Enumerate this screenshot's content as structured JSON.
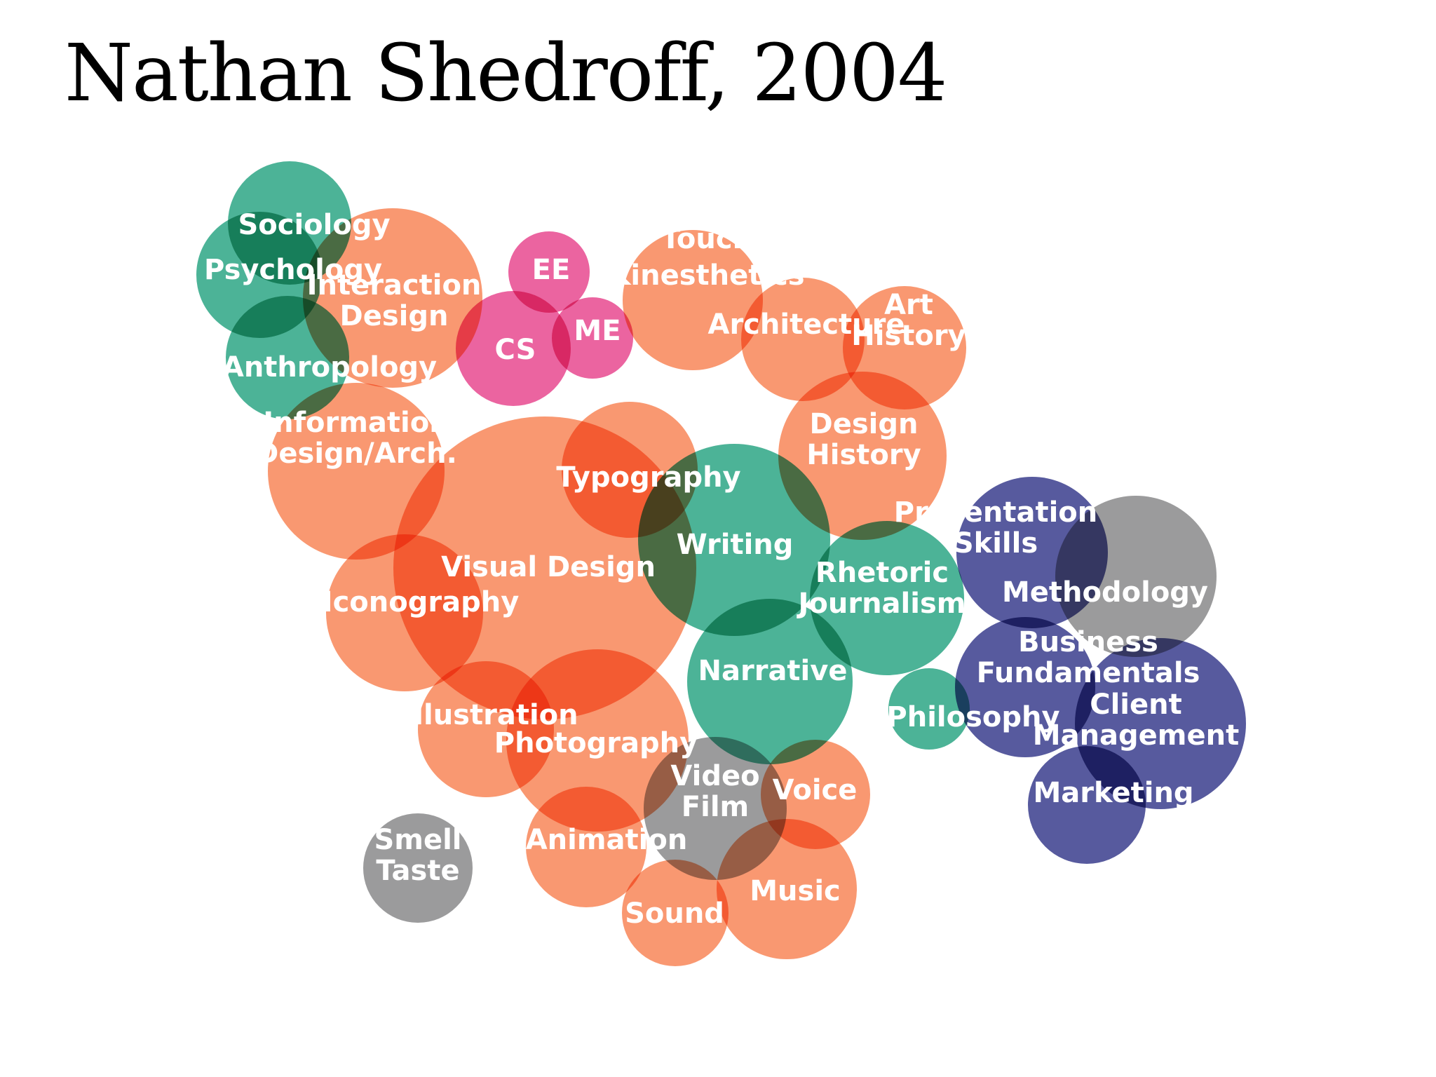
{
  "title": "Nathan Shedroff, 2004",
  "colors": {
    "orange": "#f8875a",
    "green": "#2fa786",
    "pink": "#e84a90",
    "navy": "#3b3f8e",
    "gray": "#8a8a8c"
  },
  "bubbles": [
    {
      "name": "sociology",
      "lines": [
        "Sociology"
      ],
      "group": "green"
    },
    {
      "name": "psychology",
      "lines": [
        "Psychology"
      ],
      "group": "green"
    },
    {
      "name": "anthropology",
      "lines": [
        "Anthropology"
      ],
      "group": "green"
    },
    {
      "name": "interaction-design",
      "lines": [
        "Interaction",
        "Design"
      ],
      "group": "orange"
    },
    {
      "name": "ee",
      "lines": [
        "EE"
      ],
      "group": "pink"
    },
    {
      "name": "cs",
      "lines": [
        "CS"
      ],
      "group": "pink"
    },
    {
      "name": "me",
      "lines": [
        "ME"
      ],
      "group": "pink"
    },
    {
      "name": "touch-kinesthetics",
      "lines": [
        "Touch",
        "Kinesthetics"
      ],
      "group": "orange"
    },
    {
      "name": "architecture",
      "lines": [
        "Architecture"
      ],
      "group": "orange"
    },
    {
      "name": "art-history",
      "lines": [
        "Art",
        "History"
      ],
      "group": "orange"
    },
    {
      "name": "information-design",
      "lines": [
        "Information",
        "Design/Arch."
      ],
      "group": "orange"
    },
    {
      "name": "design-history",
      "lines": [
        "Design",
        "History"
      ],
      "group": "orange"
    },
    {
      "name": "visual-design",
      "lines": [
        "Visual Design"
      ],
      "group": "orange"
    },
    {
      "name": "typography",
      "lines": [
        "Typography"
      ],
      "group": "orange"
    },
    {
      "name": "iconography",
      "lines": [
        "Iconography"
      ],
      "group": "orange"
    },
    {
      "name": "writing",
      "lines": [
        "Writing"
      ],
      "group": "green"
    },
    {
      "name": "rhetoric-journalism",
      "lines": [
        "Rhetoric",
        "Journalism"
      ],
      "group": "green"
    },
    {
      "name": "narrative",
      "lines": [
        "Narrative"
      ],
      "group": "green"
    },
    {
      "name": "philosophy",
      "lines": [
        "Philosophy"
      ],
      "group": "green"
    },
    {
      "name": "illustration",
      "lines": [
        "Illustration"
      ],
      "group": "orange"
    },
    {
      "name": "photography",
      "lines": [
        "Photography"
      ],
      "group": "orange"
    },
    {
      "name": "animation",
      "lines": [
        "Animation"
      ],
      "group": "orange"
    },
    {
      "name": "video-film",
      "lines": [
        "Video",
        "Film"
      ],
      "group": "gray"
    },
    {
      "name": "voice",
      "lines": [
        "Voice"
      ],
      "group": "orange"
    },
    {
      "name": "sound",
      "lines": [
        "Sound"
      ],
      "group": "orange"
    },
    {
      "name": "music",
      "lines": [
        "Music"
      ],
      "group": "orange"
    },
    {
      "name": "smell-taste",
      "lines": [
        "Smell",
        "Taste"
      ],
      "group": "gray"
    },
    {
      "name": "presentation-skills",
      "lines": [
        "Presentation",
        "Skills"
      ],
      "group": "navy"
    },
    {
      "name": "methodology",
      "lines": [
        "Methodology"
      ],
      "group": "gray"
    },
    {
      "name": "business-fundamentals",
      "lines": [
        "Business",
        "Fundamentals"
      ],
      "group": "navy"
    },
    {
      "name": "client-management",
      "lines": [
        "Client",
        "Management"
      ],
      "group": "navy"
    },
    {
      "name": "marketing",
      "lines": [
        "Marketing"
      ],
      "group": "navy"
    }
  ]
}
